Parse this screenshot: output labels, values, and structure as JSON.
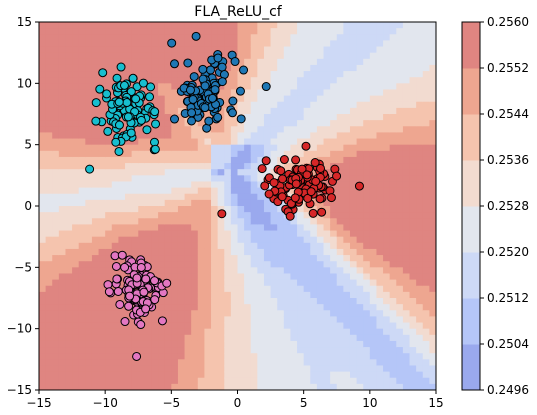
{
  "chart_data": {
    "type": "scatter",
    "title": "FLA_ReLU_cf",
    "xlim": [
      -15,
      15
    ],
    "ylim": [
      -15,
      15
    ],
    "xticks": [
      -15,
      -10,
      -5,
      0,
      5,
      10,
      15
    ],
    "yticks": [
      -15,
      -10,
      -5,
      0,
      5,
      10,
      15
    ],
    "xtick_labels": [
      "−15",
      "−10",
      "−5",
      "0",
      "5",
      "10",
      "15"
    ],
    "ytick_labels": [
      "−15",
      "−10",
      "−5",
      "0",
      "5",
      "10",
      "15"
    ],
    "background": "filled contour of model output (coolwarm colormap)",
    "colorbar": {
      "levels": [
        0.2496,
        0.2504,
        0.2512,
        0.252,
        0.2528,
        0.2536,
        0.2544,
        0.2552,
        0.256
      ],
      "tick_labels": [
        "0.2496",
        "0.2504",
        "0.2512",
        "0.2520",
        "0.2528",
        "0.2536",
        "0.2544",
        "0.2552",
        "0.2560"
      ],
      "band_colors": [
        "#9aa9ee",
        "#b5c6f8",
        "#cdd9f6",
        "#e2e6ee",
        "#f2dbd0",
        "#f5c4ae",
        "#eea690",
        "#df8581"
      ]
    },
    "series": [
      {
        "color": "#1f77b4",
        "center": [
          -2.5,
          9.2
        ],
        "spread": [
          1.2,
          1.4
        ],
        "count": 110
      },
      {
        "color": "#17becf",
        "center": [
          -8.2,
          7.9
        ],
        "spread": [
          1.1,
          1.4
        ],
        "count": 110
      },
      {
        "color": "#d62728",
        "center": [
          4.8,
          1.8
        ],
        "spread": [
          1.4,
          1.0
        ],
        "count": 110
      },
      {
        "color": "#e377c2",
        "center": [
          -7.4,
          -7.0
        ],
        "spread": [
          1.0,
          1.3
        ],
        "count": 110
      }
    ]
  }
}
